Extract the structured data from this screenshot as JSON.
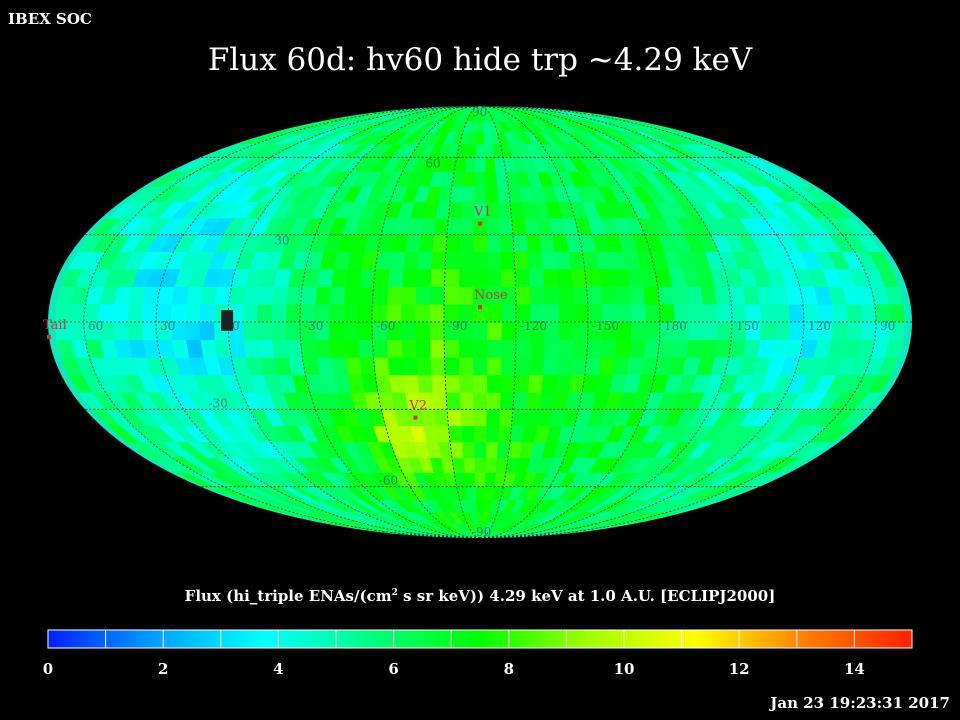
{
  "header": {
    "corner_label": "IBEX SOC",
    "title": "Flux   60d: hv60 hide trp ~4.29 keV"
  },
  "chart_data": {
    "type": "heatmap",
    "projection": "mollweide (aitoff-style all-sky)",
    "background": "#000000",
    "grid": true,
    "title": "Flux   60d: hv60 hide trp ~4.29 keV",
    "longitude_tick_labels": [
      "60",
      "30",
      "0",
      "-30",
      "-60",
      "-90",
      "-120",
      "-150",
      "180",
      "150",
      "120",
      "90"
    ],
    "latitude_tick_labels": [
      "90",
      "60",
      "30",
      "-30",
      "-60",
      "-90"
    ],
    "markers": [
      {
        "name": "V1",
        "lon": -105,
        "lat": 34
      },
      {
        "name": "Nose",
        "lon": -105,
        "lat": 5
      },
      {
        "name": "V2",
        "lon": -75,
        "lat": -33
      },
      {
        "name": "Tail",
        "lon": 75,
        "lat": -5
      }
    ],
    "marker_color": "#d03030",
    "colorbar": {
      "title": "Flux (hi_triple ENAs/(cm",
      "title_sup": "2",
      "title_rest": " s sr keV))  4.29 keV at 1.0 A.U. [ECLIPJ2000]",
      "min": 0,
      "max": 15,
      "ticks": [
        "0",
        "2",
        "4",
        "6",
        "8",
        "10",
        "12",
        "14"
      ],
      "colors": [
        "#0020ff",
        "#00a0ff",
        "#00ffff",
        "#00ff80",
        "#00ff00",
        "#a0ff00",
        "#ffff00",
        "#ff8000",
        "#ff2000"
      ]
    },
    "value_range_observed": [
      3,
      10
    ]
  },
  "footer": {
    "timestamp": "Jan 23 19:23:31 2017"
  }
}
